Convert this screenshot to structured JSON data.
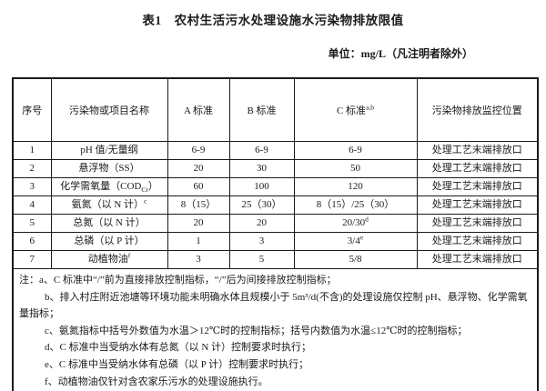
{
  "title": "表1　农村生活污水处理设施水污染物排放限值",
  "unit_label": "单位：mg/L（凡注明者除外）",
  "table": {
    "headers": [
      {
        "label": "序号",
        "sup": ""
      },
      {
        "label": "污染物或项目名称",
        "sup": ""
      },
      {
        "label": "A 标准",
        "sup": ""
      },
      {
        "label": "B 标准",
        "sup": ""
      },
      {
        "label": "C 标准",
        "sup": "a,b"
      },
      {
        "label": "污染物排放监控位置",
        "sup": ""
      }
    ],
    "rows": [
      {
        "num": "1",
        "name": "pH 值/无量纲",
        "name_sub": "",
        "name_post": "",
        "name_sup": "",
        "a": "6-9",
        "b": "6-9",
        "c": "6-9",
        "c_sup": "",
        "loc": "处理工艺末端排放口"
      },
      {
        "num": "2",
        "name": "悬浮物（SS）",
        "name_sub": "",
        "name_post": "",
        "name_sup": "",
        "a": "20",
        "b": "30",
        "c": "50",
        "c_sup": "",
        "loc": "处理工艺末端排放口"
      },
      {
        "num": "3",
        "name": "化学需氧量（COD",
        "name_sub": "Cr",
        "name_post": "）",
        "name_sup": "",
        "a": "60",
        "b": "100",
        "c": "120",
        "c_sup": "",
        "loc": "处理工艺末端排放口"
      },
      {
        "num": "4",
        "name": "氨氮（以 N 计）",
        "name_sub": "",
        "name_post": "",
        "name_sup": "c",
        "a": "8（15）",
        "b": "25（30）",
        "c": "8（15）/25（30）",
        "c_sup": "",
        "loc": "处理工艺末端排放口"
      },
      {
        "num": "5",
        "name": "总氮（以 N 计）",
        "name_sub": "",
        "name_post": "",
        "name_sup": "",
        "a": "20",
        "b": "20",
        "c": "20/30",
        "c_sup": "d",
        "loc": "处理工艺末端排放口"
      },
      {
        "num": "6",
        "name": "总磷（以 P 计）",
        "name_sub": "",
        "name_post": "",
        "name_sup": "",
        "a": "1",
        "b": "3",
        "c": "3/4",
        "c_sup": "e",
        "loc": "处理工艺末端排放口"
      },
      {
        "num": "7",
        "name": "动植物油",
        "name_sub": "",
        "name_post": "",
        "name_sup": "f",
        "a": "3",
        "b": "5",
        "c": "5/8",
        "c_sup": "",
        "loc": "处理工艺末端排放口"
      }
    ],
    "notes": [
      "注：a、C 标准中“/”前为直接排放控制指标，“/”后为间接排放控制指标；",
      "b、排入村庄附近池塘等环境功能未明确水体且规模小于 5m³/d(不含)的处理设施仅控制 pH、悬浮物、化学需氧量指标；",
      "c、氨氮指标中括号外数值为水温＞12℃时的控制指标；括号内数值为水温≤12℃时的控制指标；",
      "d、C 标准中当受纳水体有总氮（以 N 计）控制要求时执行；",
      "e、C 标准中当受纳水体有总磷（以 P 计）控制要求时执行；",
      "f、动植物油仅针对含农家乐污水的处理设施执行。"
    ]
  }
}
